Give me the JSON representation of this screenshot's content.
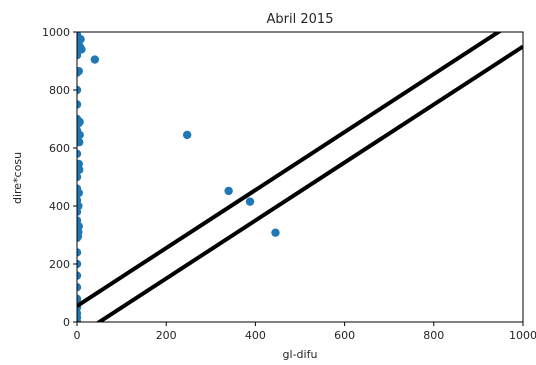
{
  "chart_data": {
    "type": "scatter",
    "title": "Abril 2015",
    "xlabel": "gl-difu",
    "ylabel": "dire*cosu",
    "xlim": [
      0,
      1000
    ],
    "ylim": [
      0,
      1000
    ],
    "xticks": [
      "0",
      "200",
      "400",
      "600",
      "800",
      "1000"
    ],
    "yticks": [
      "0",
      "200",
      "400",
      "600",
      "800",
      "1000"
    ],
    "grid": false,
    "marker_color": "#1f77b4",
    "line_color": "#000000",
    "points": [
      [
        0,
        0
      ],
      [
        0,
        15
      ],
      [
        0,
        30
      ],
      [
        0,
        50
      ],
      [
        0,
        80
      ],
      [
        0,
        120
      ],
      [
        0,
        160
      ],
      [
        0,
        200
      ],
      [
        0,
        240
      ],
      [
        0,
        290
      ],
      [
        0,
        320
      ],
      [
        0,
        350
      ],
      [
        0,
        380
      ],
      [
        0,
        420
      ],
      [
        0,
        460
      ],
      [
        0,
        500
      ],
      [
        0,
        540
      ],
      [
        0,
        580
      ],
      [
        0,
        620
      ],
      [
        0,
        660
      ],
      [
        0,
        700
      ],
      [
        0,
        750
      ],
      [
        0,
        800
      ],
      [
        0,
        860
      ],
      [
        0,
        920
      ],
      [
        0,
        960
      ],
      [
        0,
        990
      ],
      [
        2,
        295
      ],
      [
        3,
        310
      ],
      [
        4,
        330
      ],
      [
        3,
        400
      ],
      [
        4,
        445
      ],
      [
        5,
        525
      ],
      [
        4,
        545
      ],
      [
        5,
        620
      ],
      [
        6,
        645
      ],
      [
        3,
        685
      ],
      [
        6,
        690
      ],
      [
        4,
        865
      ],
      [
        6,
        950
      ],
      [
        8,
        975
      ],
      [
        10,
        940
      ],
      [
        40,
        905
      ],
      [
        247,
        645
      ],
      [
        340,
        452
      ],
      [
        388,
        415
      ],
      [
        445,
        308
      ]
    ],
    "lines": [
      {
        "x": [
          0,
          1000
        ],
        "y": [
          55,
          1055
        ]
      },
      {
        "x": [
          0,
          1000
        ],
        "y": [
          -50,
          950
        ]
      }
    ]
  }
}
